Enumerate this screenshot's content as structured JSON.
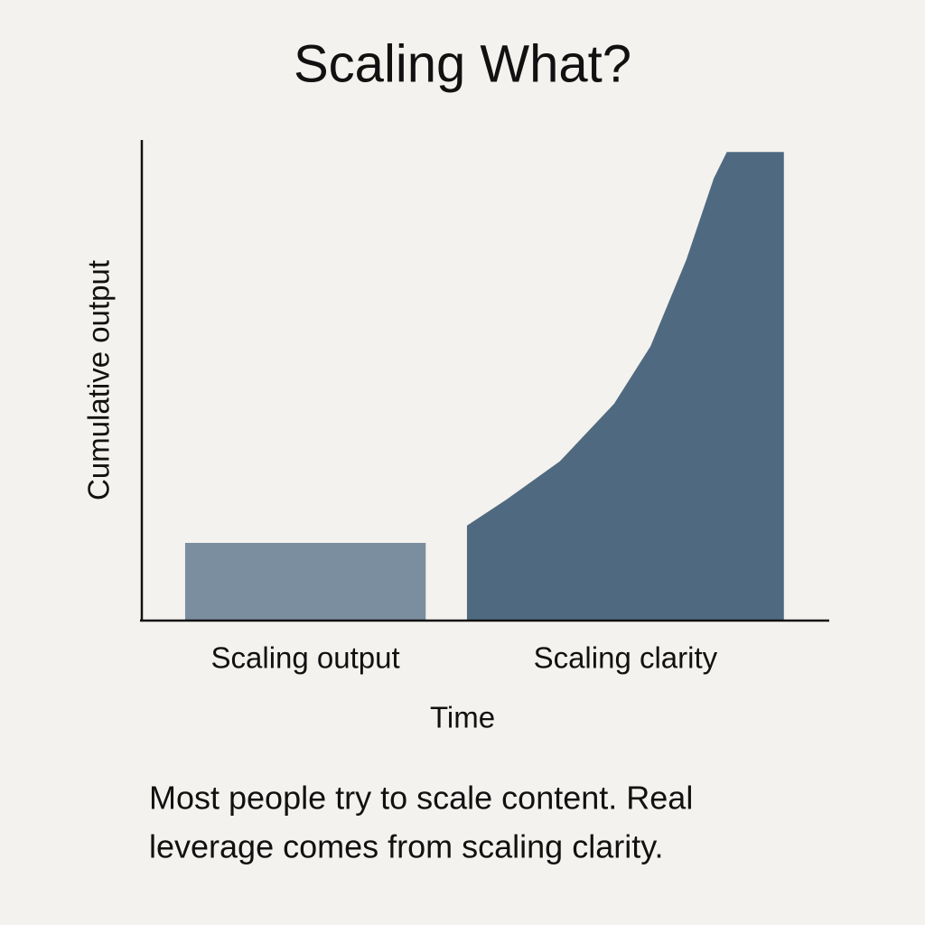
{
  "chart_data": {
    "type": "area",
    "title": "Scaling What?",
    "x_label": "Time",
    "y_label": "Cumulative output",
    "xlim": [
      0,
      100
    ],
    "ylim": [
      0,
      100
    ],
    "series": [
      {
        "name": "Scaling output",
        "color": "#7b8e9f",
        "x": [
          6.3,
          41.3
        ],
        "values": [
          16,
          16
        ]
      },
      {
        "name": "Scaling clarity",
        "color": "#4f6a80",
        "x": [
          47.3,
          53.0,
          60.8,
          68.7,
          74.0,
          79.2,
          83.2,
          85.1,
          93.4
        ],
        "values": [
          19.6,
          25,
          33,
          45,
          57,
          75,
          92,
          97.5,
          97.5
        ]
      }
    ],
    "caption": [
      "Most people try to scale content. Real",
      "leverage comes from scaling clarity."
    ]
  }
}
